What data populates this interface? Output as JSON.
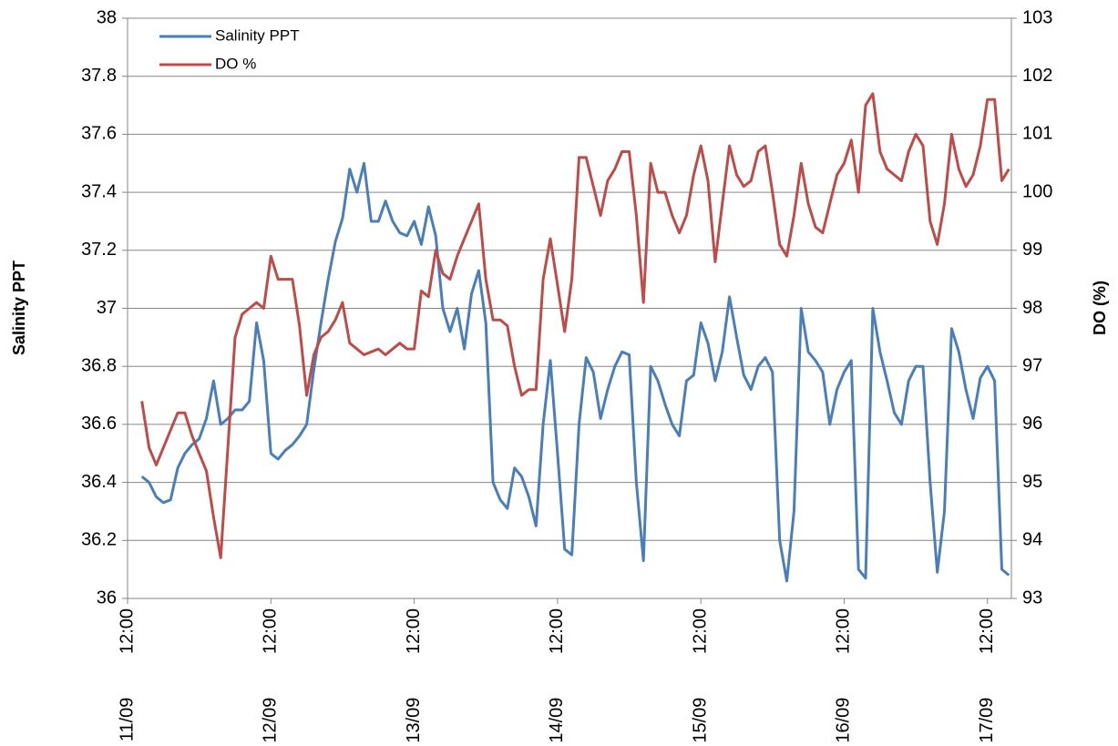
{
  "chart_data": {
    "type": "line",
    "y_label": "Salinity PPT",
    "y2_label": "DO (%)",
    "legend": "upper left",
    "grid": true,
    "xlim": [
      11.5,
      17.667
    ],
    "xticks": [
      {
        "value": 11.5,
        "label": "11/09 12:00"
      },
      {
        "value": 12.5,
        "label": "12/09 12:00"
      },
      {
        "value": 13.5,
        "label": "13/09 12:00"
      },
      {
        "value": 14.5,
        "label": "14/09 12:00"
      },
      {
        "value": 15.5,
        "label": "15/09 12:00"
      },
      {
        "value": 16.5,
        "label": "16/09 12:00"
      },
      {
        "value": 17.5,
        "label": "17/09 12:00"
      }
    ],
    "ylim": [
      36,
      38
    ],
    "yticks": [
      36,
      {
        "value": 36.2,
        "label": "36.2"
      },
      {
        "value": 36.4,
        "label": "36.4"
      },
      {
        "value": 36.6,
        "label": "36.6"
      },
      {
        "value": 36.8,
        "label": "36.8"
      },
      37,
      {
        "value": 37.2,
        "label": "37.2"
      },
      {
        "value": 37.4,
        "label": "37.4"
      },
      {
        "value": 37.6,
        "label": "37.6"
      },
      {
        "value": 37.8,
        "label": "37.8"
      },
      38
    ],
    "y2lim": [
      93,
      103
    ],
    "y2ticks": [
      93,
      94,
      95,
      96,
      97,
      98,
      99,
      100,
      101,
      102,
      103
    ],
    "x": [
      11.6,
      11.65,
      11.7,
      11.75,
      11.8,
      11.85,
      11.9,
      11.95,
      12.0,
      12.05,
      12.1,
      12.15,
      12.2,
      12.25,
      12.3,
      12.35,
      12.4,
      12.45,
      12.5,
      12.55,
      12.6,
      12.65,
      12.7,
      12.75,
      12.8,
      12.85,
      12.9,
      12.95,
      13.0,
      13.05,
      13.1,
      13.15,
      13.2,
      13.25,
      13.3,
      13.35,
      13.4,
      13.45,
      13.5,
      13.55,
      13.6,
      13.65,
      13.7,
      13.75,
      13.8,
      13.85,
      13.9,
      13.95,
      14.0,
      14.05,
      14.1,
      14.15,
      14.2,
      14.25,
      14.3,
      14.35,
      14.4,
      14.45,
      14.5,
      14.55,
      14.6,
      14.65,
      14.7,
      14.75,
      14.8,
      14.85,
      14.9,
      14.95,
      15.0,
      15.05,
      15.1,
      15.15,
      15.2,
      15.25,
      15.3,
      15.35,
      15.4,
      15.45,
      15.5,
      15.55,
      15.6,
      15.65,
      15.7,
      15.75,
      15.8,
      15.85,
      15.9,
      15.95,
      16.0,
      16.05,
      16.1,
      16.15,
      16.2,
      16.25,
      16.3,
      16.35,
      16.4,
      16.45,
      16.5,
      16.55,
      16.6,
      16.65,
      16.7,
      16.75,
      16.8,
      16.85,
      16.9,
      16.95,
      17.0,
      17.05,
      17.1,
      17.15,
      17.2,
      17.25,
      17.3,
      17.35,
      17.4,
      17.45,
      17.5,
      17.55,
      17.6,
      17.65
    ],
    "series": [
      {
        "name": "Salinity PPT",
        "color": "#4a7ebb",
        "values": [
          36.42,
          36.4,
          36.35,
          36.33,
          36.34,
          36.45,
          36.5,
          36.53,
          36.55,
          36.62,
          36.75,
          36.6,
          36.62,
          36.65,
          36.65,
          36.68,
          36.95,
          36.82,
          36.5,
          36.48,
          36.51,
          36.53,
          36.56,
          36.6,
          36.79,
          36.95,
          37.1,
          37.23,
          37.31,
          37.48,
          37.4,
          37.5,
          37.3,
          37.3,
          37.37,
          37.3,
          37.26,
          37.25,
          37.3,
          37.22,
          37.35,
          37.25,
          37.0,
          36.92,
          37.0,
          36.86,
          37.05,
          37.13,
          36.95,
          36.4,
          36.34,
          36.31,
          36.45,
          36.42,
          36.35,
          36.25,
          36.6,
          36.82,
          36.5,
          36.17,
          36.15,
          36.6,
          36.83,
          36.78,
          36.62,
          36.72,
          36.8,
          36.85,
          36.84,
          36.4,
          36.13,
          36.8,
          36.75,
          36.67,
          36.6,
          36.56,
          36.75,
          36.77,
          36.95,
          36.88,
          36.75,
          36.85,
          37.04,
          36.9,
          36.77,
          36.72,
          36.8,
          36.83,
          36.78,
          36.2,
          36.06,
          36.3,
          37.0,
          36.85,
          36.82,
          36.78,
          36.6,
          36.72,
          36.78,
          36.82,
          36.1,
          36.07,
          37.0,
          36.85,
          36.75,
          36.64,
          36.6,
          36.75,
          36.8,
          36.8,
          36.4,
          36.09,
          36.3,
          36.93,
          36.85,
          36.72,
          36.62,
          36.76,
          36.8,
          36.75,
          36.1,
          36.08
        ]
      },
      {
        "name": "DO %",
        "color": "#be4b48",
        "axis": "y2",
        "values": [
          96.4,
          95.6,
          95.3,
          95.6,
          95.9,
          96.2,
          96.2,
          95.8,
          95.5,
          95.2,
          94.4,
          93.7,
          95.6,
          97.5,
          97.9,
          98.0,
          98.1,
          98.0,
          98.9,
          98.5,
          98.5,
          98.5,
          97.7,
          96.5,
          97.2,
          97.5,
          97.6,
          97.8,
          98.1,
          97.4,
          97.3,
          97.2,
          97.25,
          97.3,
          97.2,
          97.3,
          97.4,
          97.3,
          97.3,
          98.3,
          98.2,
          99.0,
          98.6,
          98.5,
          98.9,
          99.2,
          99.5,
          99.8,
          98.5,
          97.8,
          97.8,
          97.7,
          97.0,
          96.5,
          96.6,
          96.6,
          98.5,
          99.2,
          98.4,
          97.6,
          98.5,
          100.6,
          100.6,
          100.1,
          99.6,
          100.2,
          100.4,
          100.7,
          100.7,
          99.6,
          98.1,
          100.5,
          100.0,
          100.0,
          99.6,
          99.3,
          99.6,
          100.3,
          100.8,
          100.2,
          98.8,
          99.8,
          100.8,
          100.3,
          100.1,
          100.2,
          100.7,
          100.8,
          100.0,
          99.1,
          98.9,
          99.6,
          100.5,
          99.8,
          99.4,
          99.3,
          99.8,
          100.3,
          100.5,
          100.9,
          100.0,
          101.5,
          101.7,
          100.7,
          100.4,
          100.3,
          100.2,
          100.7,
          101.0,
          100.8,
          99.5,
          99.1,
          99.8,
          101.0,
          100.4,
          100.1,
          100.3,
          100.8,
          101.6,
          101.6,
          100.2,
          100.4
        ]
      }
    ]
  }
}
